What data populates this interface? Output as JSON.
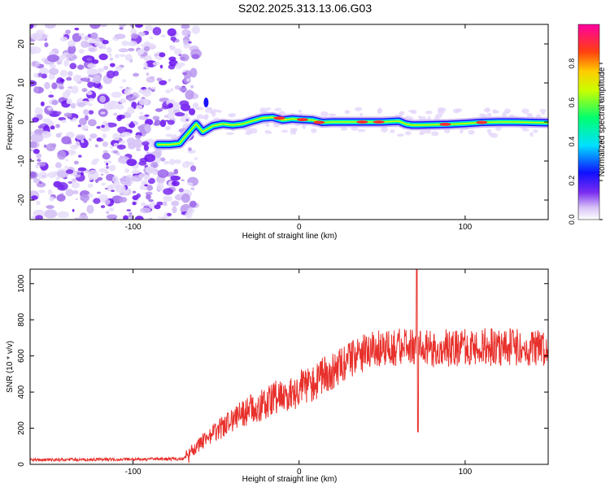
{
  "chart_data": [
    {
      "type": "heatmap",
      "title": "S202.2025.313.13.06.G03",
      "xlabel": "Height of straight line (km)",
      "ylabel": "Frequency (Hz)",
      "xlim": [
        -162,
        150
      ],
      "ylim": [
        -25,
        25
      ],
      "xticks": [
        "-100",
        "0",
        "100"
      ],
      "yticks": [
        "-20",
        "-10",
        "0",
        "10",
        "20"
      ],
      "colorbar": {
        "label": "Normalized spectral amplitude",
        "range": [
          0,
          1
        ],
        "ticks": [
          "0.0",
          "0.2",
          "0.4",
          "0.6",
          "0.8"
        ]
      },
      "ridge": {
        "x": [
          -85,
          -78,
          -72,
          -66,
          -62,
          -58,
          -52,
          -46,
          -40,
          -34,
          -28,
          -22,
          -16,
          -10,
          -4,
          2,
          8,
          14,
          20,
          30,
          40,
          50,
          60,
          64,
          68,
          72,
          80,
          90,
          100,
          110,
          120,
          130,
          140,
          150
        ],
        "freq": [
          -5.8,
          -5.8,
          -5.5,
          -2.5,
          -0.5,
          -2.5,
          -1.0,
          -0.5,
          -0.8,
          -0.5,
          0.3,
          1.0,
          1.2,
          0.5,
          0.8,
          0.6,
          0.5,
          -0.1,
          0.0,
          0.0,
          0.0,
          0.0,
          0.2,
          -0.5,
          -0.8,
          -0.8,
          -0.7,
          -0.6,
          -0.4,
          -0.1,
          0.0,
          0.0,
          -0.1,
          -0.2
        ]
      }
    },
    {
      "type": "line",
      "xlabel": "Height of straight line (km)",
      "ylabel": "SNR (10 * v/v)",
      "xlim": [
        -162,
        150
      ],
      "ylim": [
        0,
        1080
      ],
      "xticks": [
        "-100",
        "0",
        "100"
      ],
      "yticks": [
        "0",
        "200",
        "400",
        "600",
        "800",
        "1000"
      ],
      "series": [
        {
          "name": "SNR",
          "color": "#e8312c",
          "trend_x": [
            -162,
            -70,
            -65,
            -60,
            -50,
            -40,
            -30,
            -20,
            -10,
            0,
            10,
            20,
            30,
            40,
            50,
            60,
            70,
            80,
            90,
            100,
            110,
            120,
            130,
            140,
            150
          ],
          "trend_y": [
            25,
            30,
            60,
            120,
            180,
            250,
            300,
            340,
            380,
            420,
            460,
            520,
            580,
            620,
            640,
            650,
            640,
            640,
            645,
            650,
            650,
            650,
            650,
            650,
            650
          ],
          "spikes": [
            {
              "x": 71,
              "y": 1080
            },
            {
              "x": 71.6,
              "y": 180
            }
          ]
        }
      ]
    }
  ]
}
